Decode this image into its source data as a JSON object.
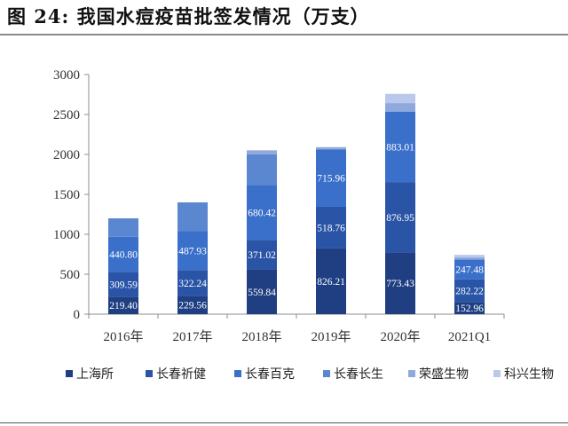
{
  "figure": {
    "title": "图 24: 我国水痘疫苗批签发情况（万支）"
  },
  "chart_data": {
    "type": "bar",
    "stacked": true,
    "categories": [
      "2016年",
      "2017年",
      "2018年",
      "2019年",
      "2020年",
      "2021Q1"
    ],
    "ylim": [
      0,
      3000
    ],
    "yticks": [
      0,
      500,
      1000,
      1500,
      2000,
      2500,
      3000
    ],
    "grid": false,
    "legend_position": "bottom",
    "series": [
      {
        "name": "上海所",
        "color": "#1f3f82",
        "values": [
          219.4,
          229.56,
          559.84,
          826.21,
          773.43,
          152.96
        ],
        "labels": [
          "219.40",
          "229.56",
          "559.84",
          "826.21",
          "773.43",
          "152.96"
        ]
      },
      {
        "name": "长春祈健",
        "color": "#2a54a6",
        "values": [
          309.59,
          322.24,
          371.02,
          518.76,
          876.95,
          282.22
        ],
        "labels": [
          "309.59",
          "322.24",
          "371.02",
          "518.76",
          "876.95",
          "282.22"
        ]
      },
      {
        "name": "长春百克",
        "color": "#3a6fca",
        "values": [
          440.8,
          487.93,
          680.42,
          715.96,
          883.01,
          247.48
        ],
        "labels": [
          "440.80",
          "487.93",
          "680.42",
          "715.96",
          "883.01",
          "247.48"
        ]
      },
      {
        "name": "长春长生",
        "color": "#5b87d0",
        "values": [
          230,
          360,
          390,
          0,
          0,
          0
        ],
        "labels": [
          "",
          "",
          "",
          "",
          "",
          ""
        ]
      },
      {
        "name": "荣盛生物",
        "color": "#8fa9dc",
        "values": [
          0,
          0,
          50,
          30,
          110,
          30
        ],
        "labels": [
          "",
          "",
          "",
          "",
          "",
          ""
        ]
      },
      {
        "name": "科兴生物",
        "color": "#b9c8ec",
        "values": [
          0,
          0,
          0,
          0,
          115,
          30
        ],
        "labels": [
          "",
          "",
          "",
          "",
          "",
          ""
        ]
      }
    ]
  }
}
